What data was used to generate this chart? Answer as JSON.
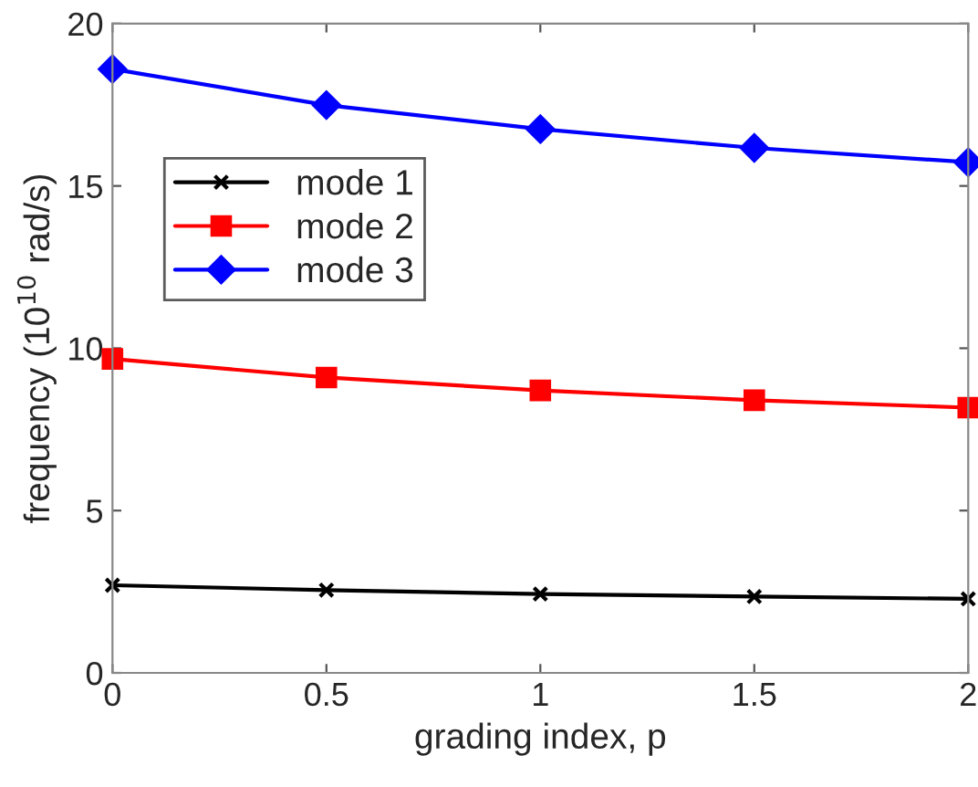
{
  "chart_data": {
    "type": "line",
    "xlabel": "grading index, p",
    "ylabel": "frequency (10$^{10}$ rad/s)",
    "x": [
      0,
      0.5,
      1,
      1.5,
      2
    ],
    "series": [
      {
        "name": "mode 1",
        "color": "#000000",
        "marker": "cross",
        "values": [
          2.7,
          2.55,
          2.43,
          2.35,
          2.28
        ]
      },
      {
        "name": "mode 2",
        "color": "#ff0000",
        "marker": "square",
        "values": [
          9.67,
          9.1,
          8.7,
          8.4,
          8.17
        ]
      },
      {
        "name": "mode 3",
        "color": "#0000ff",
        "marker": "diamond",
        "values": [
          18.6,
          17.49,
          16.75,
          16.17,
          15.73
        ]
      }
    ],
    "xlim": [
      0,
      2
    ],
    "xticks": [
      0,
      0.5,
      1,
      1.5,
      2
    ],
    "ylim": [
      0,
      20
    ],
    "yticks": [
      0,
      5,
      10,
      15,
      20
    ],
    "grid": false,
    "legend": "upper left",
    "line_style": "solid"
  }
}
